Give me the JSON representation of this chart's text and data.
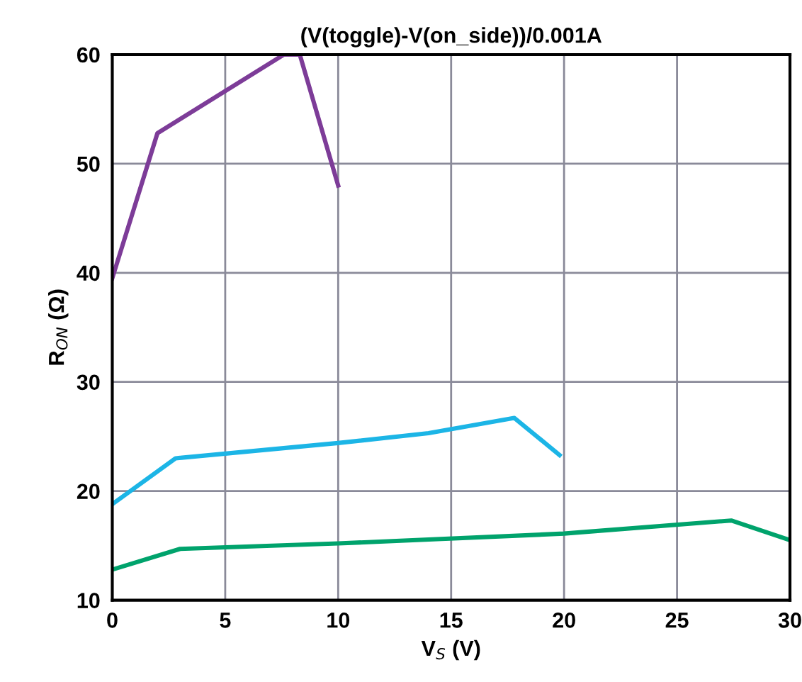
{
  "chart_data": {
    "type": "line",
    "title": "(V(toggle)-V(on_side))/0.001A",
    "xlabel": "V$_{S}$ (V)",
    "ylabel": "R$_{ON}$ (Ω)",
    "series": [
      {
        "color": "#7d3c98",
        "x": [
          0,
          2,
          7.6,
          8.3,
          10
        ],
        "values": [
          39.5,
          52.8,
          60,
          60,
          48
        ]
      },
      {
        "color": "#1cb5e6",
        "x": [
          0,
          2.8,
          10,
          14,
          17.8,
          19.8
        ],
        "values": [
          18.8,
          23,
          24.4,
          25.3,
          26.7,
          23.3
        ]
      },
      {
        "color": "#00a36c",
        "x": [
          0,
          3,
          10,
          20,
          27.4,
          30
        ],
        "values": [
          12.8,
          14.7,
          15.2,
          16.1,
          17.3,
          15.5
        ]
      }
    ],
    "xlim": [
      0,
      30
    ],
    "xticks": [
      0,
      5,
      10,
      15,
      20,
      25,
      30
    ],
    "ylim": [
      10,
      60
    ],
    "yticks": [
      10,
      20,
      30,
      40,
      50,
      60
    ],
    "grid": true,
    "legend": false,
    "marker": "none",
    "line_style": "solid"
  }
}
